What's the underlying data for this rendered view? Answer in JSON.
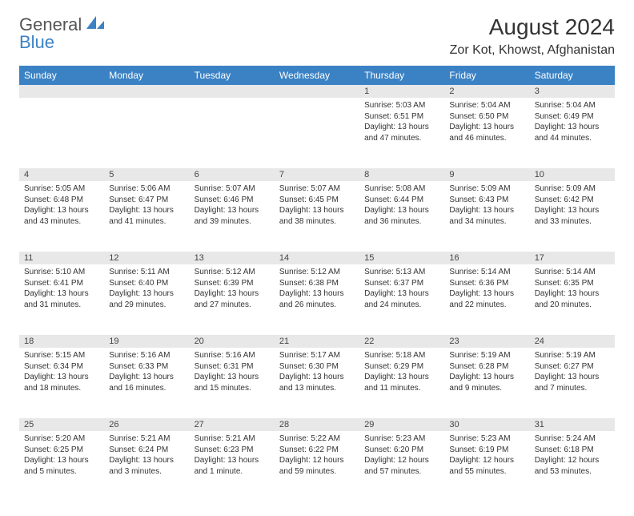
{
  "logo": {
    "part1": "General",
    "part2": "Blue"
  },
  "title": "August 2024",
  "location": "Zor Kot, Khowst, Afghanistan",
  "colors": {
    "header_bg": "#3b82c4",
    "header_text": "#ffffff",
    "daynum_bg": "#e8e8e8",
    "text": "#333333",
    "logo_gray": "#555555",
    "logo_blue": "#3b82c4",
    "background": "#ffffff"
  },
  "typography": {
    "title_fontsize": 28,
    "location_fontsize": 16,
    "th_fontsize": 12,
    "cell_fontsize": 10
  },
  "day_headers": [
    "Sunday",
    "Monday",
    "Tuesday",
    "Wednesday",
    "Thursday",
    "Friday",
    "Saturday"
  ],
  "weeks": [
    [
      null,
      null,
      null,
      null,
      {
        "n": "1",
        "sunrise": "Sunrise: 5:03 AM",
        "sunset": "Sunset: 6:51 PM",
        "day": "Daylight: 13 hours and 47 minutes."
      },
      {
        "n": "2",
        "sunrise": "Sunrise: 5:04 AM",
        "sunset": "Sunset: 6:50 PM",
        "day": "Daylight: 13 hours and 46 minutes."
      },
      {
        "n": "3",
        "sunrise": "Sunrise: 5:04 AM",
        "sunset": "Sunset: 6:49 PM",
        "day": "Daylight: 13 hours and 44 minutes."
      }
    ],
    [
      {
        "n": "4",
        "sunrise": "Sunrise: 5:05 AM",
        "sunset": "Sunset: 6:48 PM",
        "day": "Daylight: 13 hours and 43 minutes."
      },
      {
        "n": "5",
        "sunrise": "Sunrise: 5:06 AM",
        "sunset": "Sunset: 6:47 PM",
        "day": "Daylight: 13 hours and 41 minutes."
      },
      {
        "n": "6",
        "sunrise": "Sunrise: 5:07 AM",
        "sunset": "Sunset: 6:46 PM",
        "day": "Daylight: 13 hours and 39 minutes."
      },
      {
        "n": "7",
        "sunrise": "Sunrise: 5:07 AM",
        "sunset": "Sunset: 6:45 PM",
        "day": "Daylight: 13 hours and 38 minutes."
      },
      {
        "n": "8",
        "sunrise": "Sunrise: 5:08 AM",
        "sunset": "Sunset: 6:44 PM",
        "day": "Daylight: 13 hours and 36 minutes."
      },
      {
        "n": "9",
        "sunrise": "Sunrise: 5:09 AM",
        "sunset": "Sunset: 6:43 PM",
        "day": "Daylight: 13 hours and 34 minutes."
      },
      {
        "n": "10",
        "sunrise": "Sunrise: 5:09 AM",
        "sunset": "Sunset: 6:42 PM",
        "day": "Daylight: 13 hours and 33 minutes."
      }
    ],
    [
      {
        "n": "11",
        "sunrise": "Sunrise: 5:10 AM",
        "sunset": "Sunset: 6:41 PM",
        "day": "Daylight: 13 hours and 31 minutes."
      },
      {
        "n": "12",
        "sunrise": "Sunrise: 5:11 AM",
        "sunset": "Sunset: 6:40 PM",
        "day": "Daylight: 13 hours and 29 minutes."
      },
      {
        "n": "13",
        "sunrise": "Sunrise: 5:12 AM",
        "sunset": "Sunset: 6:39 PM",
        "day": "Daylight: 13 hours and 27 minutes."
      },
      {
        "n": "14",
        "sunrise": "Sunrise: 5:12 AM",
        "sunset": "Sunset: 6:38 PM",
        "day": "Daylight: 13 hours and 26 minutes."
      },
      {
        "n": "15",
        "sunrise": "Sunrise: 5:13 AM",
        "sunset": "Sunset: 6:37 PM",
        "day": "Daylight: 13 hours and 24 minutes."
      },
      {
        "n": "16",
        "sunrise": "Sunrise: 5:14 AM",
        "sunset": "Sunset: 6:36 PM",
        "day": "Daylight: 13 hours and 22 minutes."
      },
      {
        "n": "17",
        "sunrise": "Sunrise: 5:14 AM",
        "sunset": "Sunset: 6:35 PM",
        "day": "Daylight: 13 hours and 20 minutes."
      }
    ],
    [
      {
        "n": "18",
        "sunrise": "Sunrise: 5:15 AM",
        "sunset": "Sunset: 6:34 PM",
        "day": "Daylight: 13 hours and 18 minutes."
      },
      {
        "n": "19",
        "sunrise": "Sunrise: 5:16 AM",
        "sunset": "Sunset: 6:33 PM",
        "day": "Daylight: 13 hours and 16 minutes."
      },
      {
        "n": "20",
        "sunrise": "Sunrise: 5:16 AM",
        "sunset": "Sunset: 6:31 PM",
        "day": "Daylight: 13 hours and 15 minutes."
      },
      {
        "n": "21",
        "sunrise": "Sunrise: 5:17 AM",
        "sunset": "Sunset: 6:30 PM",
        "day": "Daylight: 13 hours and 13 minutes."
      },
      {
        "n": "22",
        "sunrise": "Sunrise: 5:18 AM",
        "sunset": "Sunset: 6:29 PM",
        "day": "Daylight: 13 hours and 11 minutes."
      },
      {
        "n": "23",
        "sunrise": "Sunrise: 5:19 AM",
        "sunset": "Sunset: 6:28 PM",
        "day": "Daylight: 13 hours and 9 minutes."
      },
      {
        "n": "24",
        "sunrise": "Sunrise: 5:19 AM",
        "sunset": "Sunset: 6:27 PM",
        "day": "Daylight: 13 hours and 7 minutes."
      }
    ],
    [
      {
        "n": "25",
        "sunrise": "Sunrise: 5:20 AM",
        "sunset": "Sunset: 6:25 PM",
        "day": "Daylight: 13 hours and 5 minutes."
      },
      {
        "n": "26",
        "sunrise": "Sunrise: 5:21 AM",
        "sunset": "Sunset: 6:24 PM",
        "day": "Daylight: 13 hours and 3 minutes."
      },
      {
        "n": "27",
        "sunrise": "Sunrise: 5:21 AM",
        "sunset": "Sunset: 6:23 PM",
        "day": "Daylight: 13 hours and 1 minute."
      },
      {
        "n": "28",
        "sunrise": "Sunrise: 5:22 AM",
        "sunset": "Sunset: 6:22 PM",
        "day": "Daylight: 12 hours and 59 minutes."
      },
      {
        "n": "29",
        "sunrise": "Sunrise: 5:23 AM",
        "sunset": "Sunset: 6:20 PM",
        "day": "Daylight: 12 hours and 57 minutes."
      },
      {
        "n": "30",
        "sunrise": "Sunrise: 5:23 AM",
        "sunset": "Sunset: 6:19 PM",
        "day": "Daylight: 12 hours and 55 minutes."
      },
      {
        "n": "31",
        "sunrise": "Sunrise: 5:24 AM",
        "sunset": "Sunset: 6:18 PM",
        "day": "Daylight: 12 hours and 53 minutes."
      }
    ]
  ]
}
